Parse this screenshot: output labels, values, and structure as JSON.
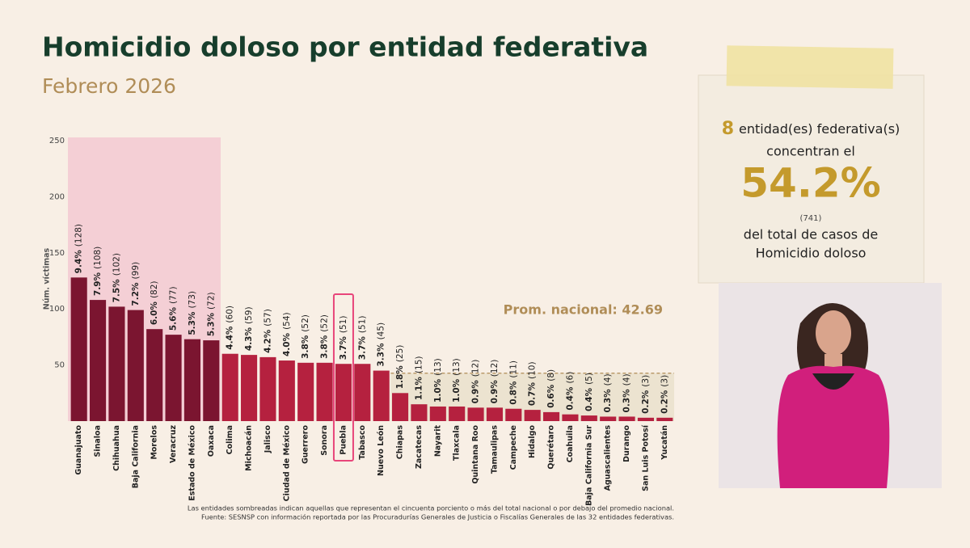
{
  "chart_data": {
    "type": "bar",
    "title": "Homicidio doloso por entidad federativa",
    "subtitle": "Febrero 2026",
    "y_label": "Núm. víctimas",
    "categories": [
      "Guanajuato",
      "Sinaloa",
      "Chihuahua",
      "Baja California",
      "Morelos",
      "Veracruz",
      "Estado de México",
      "Oaxaca",
      "Colima",
      "Michoacán",
      "Jalisco",
      "Ciudad de México",
      "Guerrero",
      "Sonora",
      "Puebla",
      "Tabasco",
      "Nuevo León",
      "Chiapas",
      "Zacatecas",
      "Nayarit",
      "Tlaxcala",
      "Quintana Roo",
      "Tamaulipas",
      "Campeche",
      "Hidalgo",
      "Querétaro",
      "Coahuila",
      "Baja California Sur",
      "Aguascalientes",
      "Durango",
      "San Luis Potosí",
      "Yucatán"
    ],
    "values": [
      128,
      108,
      102,
      99,
      82,
      77,
      73,
      72,
      60,
      59,
      57,
      54,
      52,
      52,
      51,
      51,
      45,
      25,
      15,
      13,
      13,
      12,
      12,
      11,
      10,
      8,
      6,
      5,
      4,
      4,
      3,
      3
    ],
    "value_labels": [
      "(128)",
      "(108)",
      "(102)",
      "(99)",
      "(82)",
      "(77)",
      "(73)",
      "(72)",
      "(60)",
      "(59)",
      "(57)",
      "(54)",
      "(52)",
      "(52)",
      "(51)",
      "(51)",
      "(45)",
      "(25)",
      "(15)",
      "(13)",
      "(13)",
      "(12)",
      "(12)",
      "(11)",
      "(10)",
      "(8)",
      "(6)",
      "(5)",
      "(4)",
      "(4)",
      "(3)",
      "(3)"
    ],
    "share_labels": [
      "9.4%",
      "7.9%",
      "7.5%",
      "7.2%",
      "6.0%",
      "5.6%",
      "5.3%",
      "5.3%",
      "4.4%",
      "4.3%",
      "4.2%",
      "4.0%",
      "3.8%",
      "3.8%",
      "3.7%",
      "3.7%",
      "3.3%",
      "1.8%",
      "1.1%",
      "1.0%",
      "1.0%",
      "0.9%",
      "0.9%",
      "0.8%",
      "0.7%",
      "0.6%",
      "0.4%",
      "0.4%",
      "0.3%",
      "0.3%",
      "0.2%",
      "0.2%"
    ],
    "color": "#b5213f",
    "concentration_color": "#7b1530",
    "highlight": "Puebla",
    "highlight_color": "#e8457a",
    "average": 42.69,
    "average_label": "Prom. nacional: 42.69",
    "ylim": [
      0,
      250
    ],
    "yticks": [
      50,
      100,
      150,
      200,
      250
    ],
    "grid": false,
    "notes": [
      "Las entidades sombreadas indican aquellas que representan el cincuenta porciento o más del total nacional o por debajo del promedio nacional.",
      "Fuente: SESNSP con información reportada por las Procuradurías Generales de Justicia o Fiscalías Generales de las 32 entidades federativas."
    ]
  },
  "panel": {
    "count": 8,
    "line1": "entidad(es) federativa(s)",
    "line2": "concentran el",
    "share": "54.2%",
    "total": "(741)",
    "line3": "del total de casos de",
    "line4": "Homicidio doloso"
  }
}
